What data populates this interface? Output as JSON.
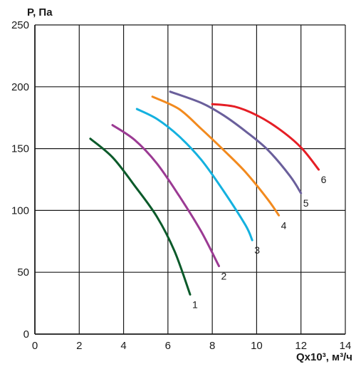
{
  "chart_data": {
    "type": "line",
    "ylabel": "P, Па",
    "xlabel": "Qx10³, м³/ч",
    "xlim": [
      0,
      14
    ],
    "ylim": [
      0,
      250
    ],
    "x_ticks": [
      "0",
      "2",
      "4",
      "6",
      "8",
      "10",
      "12",
      "14"
    ],
    "y_ticks": [
      "0",
      "50",
      "100",
      "150",
      "200",
      "250"
    ],
    "grid": true,
    "series": [
      {
        "name": "1",
        "color": "#0b5a2a",
        "points": [
          [
            2.5,
            158
          ],
          [
            3.5,
            143
          ],
          [
            4.5,
            120
          ],
          [
            5.5,
            95
          ],
          [
            6.3,
            67
          ],
          [
            7.0,
            32
          ]
        ]
      },
      {
        "name": "2",
        "color": "#9b3a93",
        "points": [
          [
            3.5,
            169
          ],
          [
            4.5,
            157
          ],
          [
            5.5,
            138
          ],
          [
            6.5,
            112
          ],
          [
            7.5,
            83
          ],
          [
            8.3,
            55
          ]
        ]
      },
      {
        "name": "3",
        "color": "#14b1df",
        "points": [
          [
            4.6,
            182
          ],
          [
            5.5,
            174
          ],
          [
            6.5,
            160
          ],
          [
            7.5,
            141
          ],
          [
            8.5,
            116
          ],
          [
            9.5,
            88
          ],
          [
            9.8,
            76
          ]
        ]
      },
      {
        "name": "4",
        "color": "#f28a1e",
        "points": [
          [
            5.3,
            192
          ],
          [
            6.5,
            182
          ],
          [
            7.5,
            166
          ],
          [
            8.5,
            149
          ],
          [
            9.5,
            131
          ],
          [
            10.5,
            109
          ],
          [
            11.0,
            96
          ]
        ]
      },
      {
        "name": "5",
        "color": "#6a5f9b",
        "points": [
          [
            6.1,
            196
          ],
          [
            7.5,
            187
          ],
          [
            8.5,
            177
          ],
          [
            9.5,
            164
          ],
          [
            10.5,
            149
          ],
          [
            11.5,
            128
          ],
          [
            12.0,
            114
          ]
        ]
      },
      {
        "name": "6",
        "color": "#e51e25",
        "points": [
          [
            8.0,
            186
          ],
          [
            9.0,
            184
          ],
          [
            10.0,
            177
          ],
          [
            11.0,
            166
          ],
          [
            12.0,
            151
          ],
          [
            12.8,
            133
          ]
        ]
      }
    ]
  }
}
